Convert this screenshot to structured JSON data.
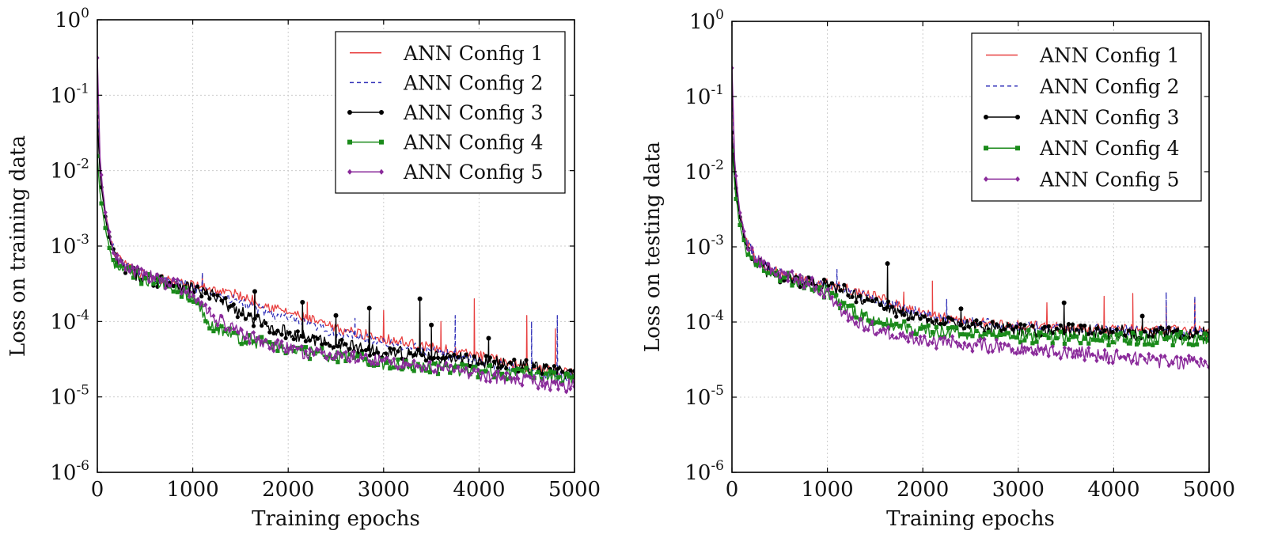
{
  "chart_data": [
    {
      "type": "line",
      "id": "train",
      "title": "",
      "xlabel": "Training epochs",
      "ylabel": "Loss on training data",
      "xlim": [
        0,
        5000
      ],
      "ylim_log10": [
        -6,
        0
      ],
      "yscale": "log",
      "grid": true,
      "legend_position": "top-right",
      "x_ticks": [
        "0",
        "1000",
        "2000",
        "3000",
        "4000",
        "5000"
      ],
      "y_ticks": [
        {
          "base": "10",
          "exp": "0"
        },
        {
          "base": "10",
          "exp": "-1"
        },
        {
          "base": "10",
          "exp": "-2"
        },
        {
          "base": "10",
          "exp": "-3"
        },
        {
          "base": "10",
          "exp": "-4"
        },
        {
          "base": "10",
          "exp": "-5"
        },
        {
          "base": "10",
          "exp": "-6"
        }
      ],
      "series": [
        {
          "name": "ANN Config 1",
          "color": "#e84040",
          "style": "solid",
          "marker": "none",
          "x": [
            0,
            30,
            80,
            150,
            250,
            400,
            600,
            800,
            1000,
            1200,
            1500,
            1800,
            2100,
            2500,
            3000,
            3500,
            4000,
            4500,
            5000
          ],
          "y": [
            0.25,
            0.01,
            0.003,
            0.001,
            0.0006,
            0.00045,
            0.00038,
            0.00034,
            0.0003,
            0.00027,
            0.00022,
            0.00016,
            0.00012,
            8e-05,
            6e-05,
            4.5e-05,
            3.5e-05,
            2.5e-05,
            2e-05
          ],
          "spikes": [
            [
              1100,
              0.0004
            ],
            [
              1650,
              0.00026
            ],
            [
              2200,
              0.00018
            ],
            [
              3000,
              0.00014
            ],
            [
              3600,
              0.0001
            ],
            [
              3950,
              0.0002
            ],
            [
              4500,
              0.00012
            ],
            [
              4800,
              8e-05
            ]
          ]
        },
        {
          "name": "ANN Config 2",
          "color": "#3030b8",
          "style": "dashed",
          "marker": "none",
          "x": [
            0,
            30,
            80,
            150,
            250,
            400,
            600,
            800,
            1000,
            1200,
            1500,
            1800,
            2100,
            2500,
            3000,
            3500,
            4000,
            4500,
            5000
          ],
          "y": [
            0.2,
            0.01,
            0.0028,
            0.001,
            0.0006,
            0.00045,
            0.00037,
            0.00033,
            0.00029,
            0.00024,
            0.00018,
            0.00013,
            0.0001,
            7e-05,
            5.5e-05,
            4e-05,
            3e-05,
            2.2e-05,
            1.8e-05
          ],
          "spikes": [
            [
              1100,
              0.00045
            ],
            [
              2700,
              0.00011
            ],
            [
              3750,
              0.00012
            ],
            [
              4550,
              0.0001
            ],
            [
              4820,
              0.00012
            ]
          ]
        },
        {
          "name": "ANN Config 3",
          "color": "#000000",
          "style": "solid",
          "marker": "circle",
          "x": [
            0,
            30,
            80,
            150,
            250,
            400,
            600,
            800,
            1000,
            1200,
            1500,
            1800,
            2100,
            2500,
            3000,
            3500,
            4000,
            4500,
            5000
          ],
          "y": [
            0.05,
            0.008,
            0.0025,
            0.0009,
            0.00055,
            0.00042,
            0.00036,
            0.00032,
            0.00028,
            0.00022,
            0.00013,
            8.5e-05,
            6.5e-05,
            5e-05,
            4e-05,
            3.5e-05,
            3e-05,
            2.5e-05,
            2e-05
          ],
          "spikes": [
            [
              1650,
              0.00025
            ],
            [
              2150,
              0.00018
            ],
            [
              2500,
              0.00012
            ],
            [
              2850,
              0.00015
            ],
            [
              3380,
              0.0002
            ],
            [
              3500,
              9e-05
            ],
            [
              4100,
              6e-05
            ]
          ]
        },
        {
          "name": "ANN Config 4",
          "color": "#1a8a1a",
          "style": "solid",
          "marker": "square",
          "x": [
            0,
            30,
            80,
            150,
            250,
            400,
            600,
            800,
            1000,
            1200,
            1500,
            1800,
            2100,
            2500,
            3000,
            3500,
            4000,
            4500,
            5000
          ],
          "y": [
            0.015,
            0.005,
            0.0018,
            0.0007,
            0.00048,
            0.0004,
            0.00034,
            0.0003,
            0.0002,
            9e-05,
            6e-05,
            5e-05,
            4e-05,
            3.5e-05,
            2.8e-05,
            2.5e-05,
            2.2e-05,
            2e-05,
            1.8e-05
          ],
          "spikes": []
        },
        {
          "name": "ANN Config 5",
          "color": "#8a2a9a",
          "style": "solid",
          "marker": "diamond",
          "x": [
            0,
            30,
            80,
            150,
            250,
            400,
            600,
            800,
            1000,
            1200,
            1500,
            1800,
            2100,
            2500,
            3000,
            3500,
            4000,
            4500,
            5000
          ],
          "y": [
            0.3,
            0.012,
            0.003,
            0.001,
            0.00056,
            0.00045,
            0.00037,
            0.00032,
            0.00022,
            0.00012,
            7e-05,
            5e-05,
            4e-05,
            3.5e-05,
            3e-05,
            2.5e-05,
            2e-05,
            1.6e-05,
            1.4e-05
          ],
          "spikes": []
        }
      ]
    },
    {
      "type": "line",
      "id": "test",
      "title": "",
      "xlabel": "Training epochs",
      "ylabel": "Loss on testing data",
      "xlim": [
        0,
        5000
      ],
      "ylim_log10": [
        -6,
        0
      ],
      "yscale": "log",
      "grid": true,
      "legend_position": "top-right",
      "x_ticks": [
        "0",
        "1000",
        "2000",
        "3000",
        "4000",
        "5000"
      ],
      "y_ticks": [
        {
          "base": "10",
          "exp": "0"
        },
        {
          "base": "10",
          "exp": "-1"
        },
        {
          "base": "10",
          "exp": "-2"
        },
        {
          "base": "10",
          "exp": "-3"
        },
        {
          "base": "10",
          "exp": "-4"
        },
        {
          "base": "10",
          "exp": "-5"
        },
        {
          "base": "10",
          "exp": "-6"
        }
      ],
      "series": [
        {
          "name": "ANN Config 1",
          "color": "#e84040",
          "style": "solid",
          "marker": "none",
          "x": [
            0,
            30,
            80,
            150,
            250,
            400,
            600,
            800,
            1000,
            1200,
            1500,
            1800,
            2100,
            2500,
            3000,
            3500,
            4000,
            4500,
            5000
          ],
          "y": [
            0.2,
            0.01,
            0.003,
            0.0012,
            0.0007,
            0.0005,
            0.0004,
            0.00036,
            0.00032,
            0.00028,
            0.00022,
            0.00016,
            0.00012,
            0.0001,
            9e-05,
            8.5e-05,
            8e-05,
            7.8e-05,
            7.5e-05
          ],
          "spikes": [
            [
              1800,
              0.00025
            ],
            [
              2100,
              0.00035
            ],
            [
              3300,
              0.00018
            ],
            [
              3900,
              0.00022
            ],
            [
              4200,
              0.00024
            ],
            [
              4550,
              0.00018
            ],
            [
              4850,
              0.0002
            ]
          ]
        },
        {
          "name": "ANN Config 2",
          "color": "#3030b8",
          "style": "dashed",
          "marker": "none",
          "x": [
            0,
            30,
            80,
            150,
            250,
            400,
            600,
            800,
            1000,
            1200,
            1500,
            1800,
            2100,
            2500,
            3000,
            3500,
            4000,
            4500,
            5000
          ],
          "y": [
            0.18,
            0.01,
            0.003,
            0.0012,
            0.0007,
            0.0005,
            0.0004,
            0.00035,
            0.00031,
            0.00026,
            0.0002,
            0.00015,
            0.00012,
            0.0001,
            8.8e-05,
            8.2e-05,
            7.8e-05,
            7.5e-05,
            7.2e-05
          ],
          "spikes": [
            [
              1100,
              0.0005
            ],
            [
              2250,
              0.0002
            ],
            [
              4550,
              0.00025
            ],
            [
              4850,
              0.00022
            ]
          ]
        },
        {
          "name": "ANN Config 3",
          "color": "#000000",
          "style": "solid",
          "marker": "circle",
          "x": [
            0,
            30,
            80,
            150,
            250,
            400,
            600,
            800,
            1000,
            1200,
            1500,
            1800,
            2100,
            2500,
            3000,
            3500,
            4000,
            4500,
            5000
          ],
          "y": [
            0.035,
            0.008,
            0.0025,
            0.001,
            0.0006,
            0.00045,
            0.00038,
            0.00034,
            0.0003,
            0.00025,
            0.00018,
            0.00013,
            0.0001,
            9e-05,
            8e-05,
            7.8e-05,
            7.5e-05,
            7e-05,
            7e-05
          ],
          "spikes": [
            [
              1630,
              0.0006
            ],
            [
              2400,
              0.00015
            ],
            [
              3480,
              0.00018
            ],
            [
              4300,
              0.00012
            ]
          ]
        },
        {
          "name": "ANN Config 4",
          "color": "#1a8a1a",
          "style": "solid",
          "marker": "square",
          "x": [
            0,
            30,
            80,
            150,
            250,
            400,
            600,
            800,
            1000,
            1200,
            1500,
            1800,
            2100,
            2500,
            3000,
            3500,
            4000,
            4500,
            5000
          ],
          "y": [
            0.02,
            0.006,
            0.002,
            0.0009,
            0.0006,
            0.00045,
            0.00038,
            0.00032,
            0.00025,
            0.00015,
            0.0001,
            8.5e-05,
            7.5e-05,
            7e-05,
            6.5e-05,
            6.2e-05,
            6e-05,
            6e-05,
            6e-05
          ],
          "spikes": []
        },
        {
          "name": "ANN Config 5",
          "color": "#8a2a9a",
          "style": "solid",
          "marker": "diamond",
          "x": [
            0,
            30,
            80,
            150,
            250,
            400,
            600,
            800,
            1000,
            1200,
            1500,
            1800,
            2100,
            2500,
            3000,
            3500,
            4000,
            4500,
            5000
          ],
          "y": [
            0.25,
            0.012,
            0.003,
            0.0012,
            0.0007,
            0.0005,
            0.0004,
            0.00034,
            0.00024,
            0.00012,
            8e-05,
            6.5e-05,
            5.5e-05,
            5e-05,
            4.5e-05,
            4e-05,
            3.5e-05,
            3e-05,
            2.8e-05
          ],
          "spikes": []
        }
      ]
    }
  ]
}
